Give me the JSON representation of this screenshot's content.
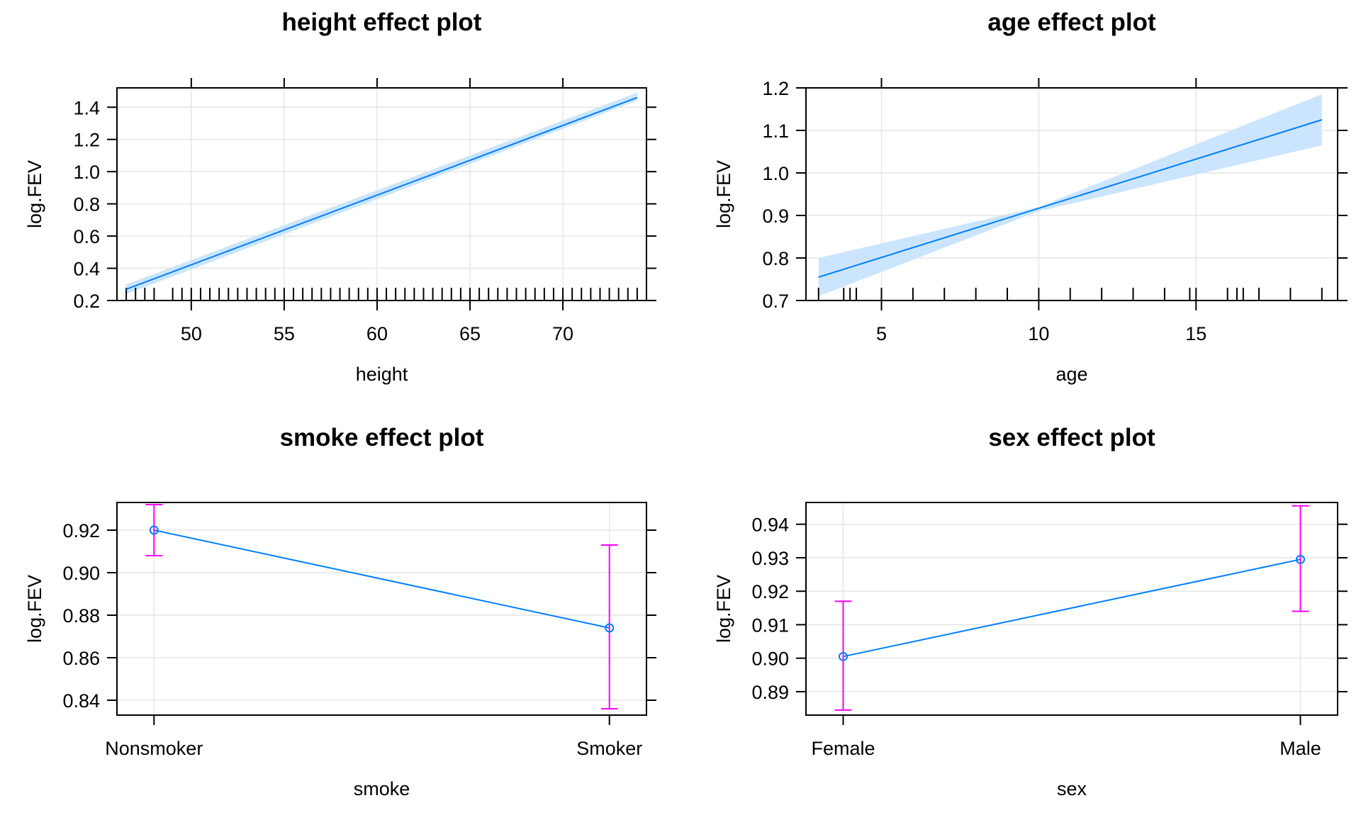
{
  "chart_data": [
    {
      "type": "line",
      "title": "height effect plot",
      "xlabel": "height",
      "ylabel": "log.FEV",
      "xlim": [
        46.0,
        74.5
      ],
      "ylim": [
        0.2,
        1.52
      ],
      "xticks": [
        50,
        55,
        60,
        65,
        70
      ],
      "yticks": [
        0.2,
        0.4,
        0.6,
        0.8,
        1.0,
        1.2,
        1.4
      ],
      "ytick_labels": [
        "0.2",
        "0.4",
        "0.6",
        "0.8",
        "1.0",
        "1.2",
        "1.4"
      ],
      "grid": true,
      "fit": {
        "x": [
          46.5,
          74.0
        ],
        "y": [
          0.27,
          1.46
        ]
      },
      "band": {
        "x": [
          46.5,
          74.0
        ],
        "lower": [
          0.24,
          1.44
        ],
        "upper": [
          0.3,
          1.49
        ]
      },
      "rug": [
        46.5,
        47,
        47.5,
        48,
        49,
        49.5,
        50,
        50.5,
        51,
        51.5,
        52,
        52.5,
        53,
        53.5,
        54,
        54.5,
        55,
        55.5,
        56,
        56.5,
        57,
        57.5,
        58,
        58.5,
        59,
        59.5,
        60,
        60.5,
        61,
        61.5,
        62,
        62.5,
        63,
        63.5,
        64,
        64.5,
        65,
        65.5,
        66,
        66.5,
        67,
        67.5,
        68,
        68.5,
        69,
        69.5,
        70,
        70.5,
        71,
        71.5,
        72,
        72.5,
        73,
        73.5,
        74
      ]
    },
    {
      "type": "line",
      "title": "age effect plot",
      "xlabel": "age",
      "ylabel": "log.FEV",
      "xlim": [
        2.6,
        19.5
      ],
      "ylim": [
        0.7,
        1.2
      ],
      "xticks": [
        5,
        10,
        15
      ],
      "yticks": [
        0.7,
        0.8,
        0.9,
        1.0,
        1.1,
        1.2
      ],
      "ytick_labels": [
        "0.7",
        "0.8",
        "0.9",
        "1.0",
        "1.1",
        "1.2"
      ],
      "grid": true,
      "fit": {
        "x": [
          3,
          19
        ],
        "y": [
          0.755,
          1.125
        ]
      },
      "band": {
        "x": [
          3,
          10,
          19
        ],
        "lower": [
          0.71,
          0.91,
          1.065
        ],
        "upper": [
          0.8,
          0.92,
          1.185
        ]
      },
      "rug": [
        3,
        3.8,
        4,
        4.2,
        5,
        6,
        7,
        8,
        9,
        10,
        11,
        12,
        13,
        14,
        14.8,
        15,
        16,
        16.3,
        16.5,
        17,
        18,
        19
      ]
    },
    {
      "type": "line",
      "title": "smoke effect plot",
      "xlabel": "smoke",
      "ylabel": "log.FEV",
      "categories": [
        "Nonsmoker",
        "Smoker"
      ],
      "values": [
        0.92,
        0.874
      ],
      "lower": [
        0.908,
        0.836
      ],
      "upper": [
        0.932,
        0.913
      ],
      "ylim": [
        0.833,
        0.933
      ],
      "yticks": [
        0.84,
        0.86,
        0.88,
        0.9,
        0.92
      ],
      "ytick_labels": [
        "0.84",
        "0.86",
        "0.88",
        "0.90",
        "0.92"
      ],
      "grid": true
    },
    {
      "type": "line",
      "title": "sex effect plot",
      "xlabel": "sex",
      "ylabel": "log.FEV",
      "categories": [
        "Female",
        "Male"
      ],
      "values": [
        0.9005,
        0.9295
      ],
      "lower": [
        0.8845,
        0.914
      ],
      "upper": [
        0.917,
        0.9455
      ],
      "ylim": [
        0.883,
        0.9465
      ],
      "yticks": [
        0.89,
        0.9,
        0.91,
        0.92,
        0.93,
        0.94
      ],
      "ytick_labels": [
        "0.89",
        "0.90",
        "0.91",
        "0.92",
        "0.93",
        "0.94"
      ],
      "grid": true
    }
  ],
  "colors": {
    "line": "#0080ff",
    "band": "#cce5ff",
    "errorbar": "#ff00ff",
    "grid": "#e6e6e6",
    "frame": "#000000"
  }
}
